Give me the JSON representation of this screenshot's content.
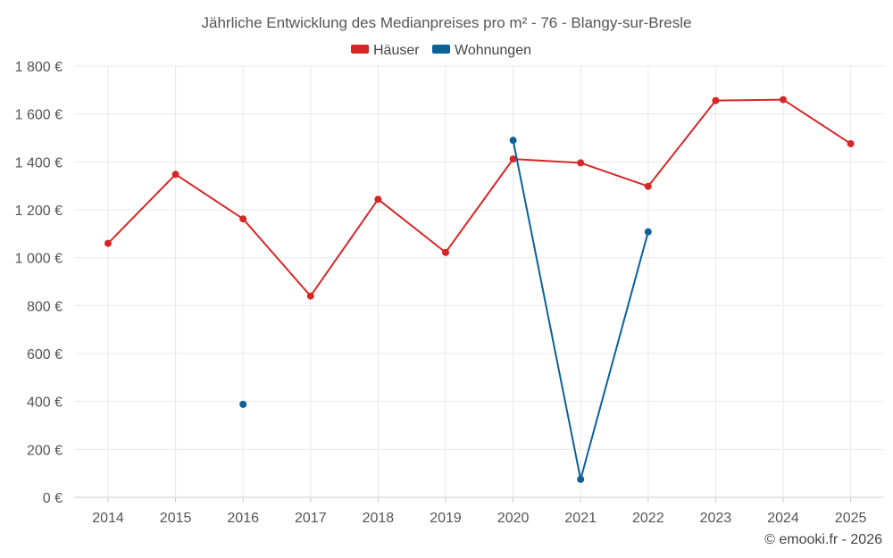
{
  "chart_data": {
    "type": "line",
    "title": "Jährliche Entwicklung des Medianpreises pro m² - 76 - Blangy-sur-Bresle",
    "categories": [
      "2014",
      "2015",
      "2016",
      "2017",
      "2018",
      "2019",
      "2020",
      "2021",
      "2022",
      "2023",
      "2024",
      "2025"
    ],
    "ylim": [
      0,
      1800
    ],
    "yticks": [
      0,
      200,
      400,
      600,
      800,
      1000,
      1200,
      1400,
      1600,
      1800
    ],
    "ytick_labels": [
      "0 €",
      "200 €",
      "400 €",
      "600 €",
      "800 €",
      "1 000 €",
      "1 200 €",
      "1 400 €",
      "1 600 €",
      "1 800 €"
    ],
    "grid": true,
    "legend_position": "top-center",
    "series": [
      {
        "name": "Häuser",
        "color": "#d62728",
        "values": [
          1060,
          1348,
          1162,
          840,
          1244,
          1022,
          1412,
          1396,
          1298,
          1656,
          1660,
          1476
        ]
      },
      {
        "name": "Wohnungen",
        "color": "#0a6299",
        "values": [
          null,
          null,
          388,
          null,
          null,
          null,
          1490,
          75,
          1108,
          null,
          null,
          null
        ]
      }
    ]
  },
  "credit": "© emooki.fr - 2026"
}
